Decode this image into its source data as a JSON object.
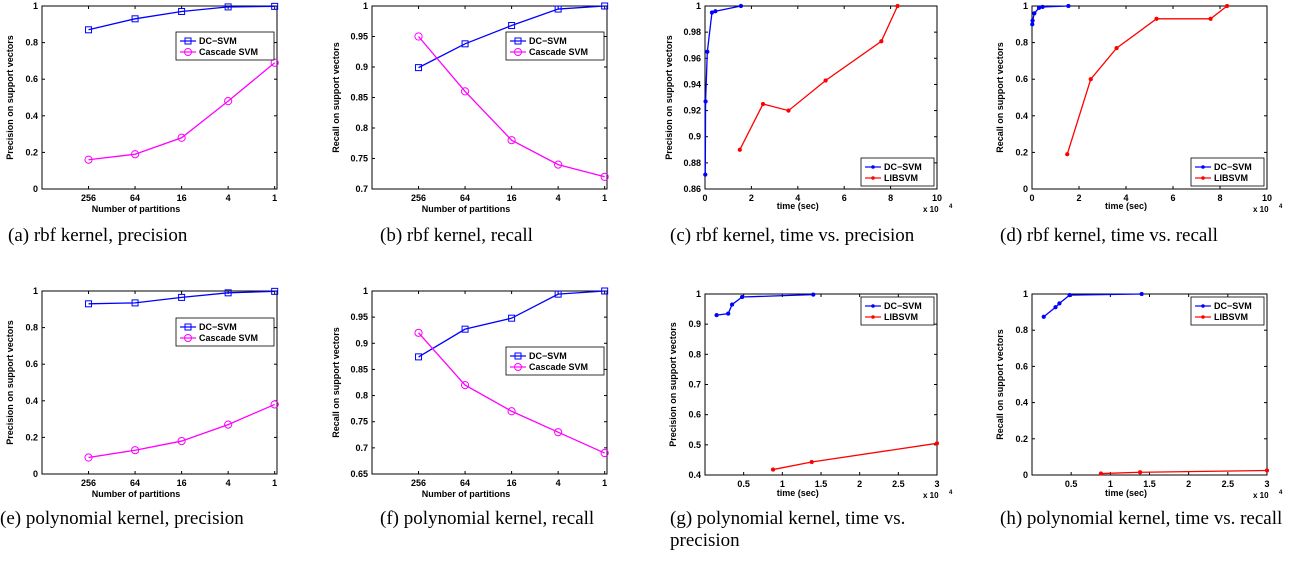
{
  "chart_data": [
    {
      "type": "line",
      "caption": "(a) rbf kernel, precision",
      "xlabel": "Number of partitions",
      "ylabel": "Precision on support vectors",
      "x_categorical": true,
      "categories": [
        "256",
        "64",
        "16",
        "4",
        "1"
      ],
      "xlim": [
        0,
        5.05
      ],
      "ylim": [
        0,
        1
      ],
      "xticks": [
        1,
        2,
        3,
        4,
        5
      ],
      "xticklabels": [
        "256",
        "64",
        "16",
        "4",
        "1"
      ],
      "yticks": [
        0,
        0.2,
        0.4,
        0.6,
        0.8,
        1
      ],
      "yticklabels": [
        "0",
        "0.2",
        "0.4",
        "0.6",
        "0.8",
        "1"
      ],
      "grid": false,
      "legend_position": "upper-right",
      "series": [
        {
          "name": "DC−SVM",
          "color": "#0000ff",
          "marker": "square",
          "values": [
            0.87,
            0.93,
            0.97,
            0.995,
            0.998
          ]
        },
        {
          "name": "Cascade SVM",
          "color": "#ff00ff",
          "marker": "circle",
          "values": [
            0.16,
            0.19,
            0.28,
            0.48,
            0.69
          ]
        }
      ]
    },
    {
      "type": "line",
      "caption": "(b) rbf kernel, recall",
      "xlabel": "Number of partitions",
      "ylabel": "Recall on support vectors",
      "x_categorical": true,
      "categories": [
        "256",
        "64",
        "16",
        "4",
        "1"
      ],
      "xlim": [
        0,
        5.05
      ],
      "ylim": [
        0.7,
        1
      ],
      "xticks": [
        1,
        2,
        3,
        4,
        5
      ],
      "xticklabels": [
        "256",
        "64",
        "16",
        "4",
        "1"
      ],
      "yticks": [
        0.7,
        0.75,
        0.8,
        0.85,
        0.9,
        0.95,
        1
      ],
      "yticklabels": [
        "0.7",
        "0.75",
        "0.8",
        "0.85",
        "0.9",
        "0.95",
        "1"
      ],
      "grid": false,
      "legend_position": "upper-right",
      "series": [
        {
          "name": "DC−SVM",
          "color": "#0000ff",
          "marker": "square",
          "values": [
            0.899,
            0.938,
            0.968,
            0.995,
            1.0
          ]
        },
        {
          "name": "Cascade SVM",
          "color": "#ff00ff",
          "marker": "circle",
          "values": [
            0.95,
            0.86,
            0.78,
            0.74,
            0.72
          ]
        }
      ]
    },
    {
      "type": "line",
      "caption": "(c) rbf kernel, time vs. precision",
      "xlabel": "time (sec)",
      "ylabel": "Precision on support vectors",
      "x_exponent": "x 10",
      "x_categorical": false,
      "xlim": [
        0,
        100000
      ],
      "ylim": [
        0.86,
        1
      ],
      "xticks": [
        0,
        20000,
        40000,
        60000,
        80000,
        100000
      ],
      "xticklabels": [
        "0",
        "2",
        "4",
        "6",
        "8",
        "10"
      ],
      "yticks": [
        0.86,
        0.88,
        0.9,
        0.92,
        0.94,
        0.96,
        0.98,
        1
      ],
      "yticklabels": [
        "0.86",
        "0.88",
        "0.9",
        "0.92",
        "0.94",
        "0.96",
        "0.98",
        "1"
      ],
      "grid": false,
      "legend_position": "lower-right",
      "series": [
        {
          "name": "DC−SVM",
          "color": "#0000ff",
          "marker": "dot",
          "x": [
            120,
            250,
            1000,
            3000,
            4500,
            15500
          ],
          "y": [
            0.871,
            0.927,
            0.965,
            0.995,
            0.996,
            1.0
          ]
        },
        {
          "name": "LIBSVM",
          "color": "#ff0000",
          "marker": "dot",
          "x": [
            15000,
            25000,
            36000,
            52000,
            76000,
            83000
          ],
          "y": [
            0.89,
            0.925,
            0.92,
            0.943,
            0.973,
            1.0
          ]
        }
      ]
    },
    {
      "type": "line",
      "caption": "(d) rbf kernel, time vs. recall",
      "xlabel": "time (sec)",
      "ylabel": "Recall on support vectors",
      "x_exponent": "x 10",
      "x_categorical": false,
      "xlim": [
        0,
        100000
      ],
      "ylim": [
        0,
        1
      ],
      "xticks": [
        0,
        20000,
        40000,
        60000,
        80000,
        100000
      ],
      "xticklabels": [
        "0",
        "2",
        "4",
        "6",
        "8",
        "10"
      ],
      "yticks": [
        0,
        0.2,
        0.4,
        0.6,
        0.8,
        1
      ],
      "yticklabels": [
        "0",
        "0.2",
        "0.4",
        "0.6",
        "0.8",
        "1"
      ],
      "grid": false,
      "legend_position": "lower-right",
      "series": [
        {
          "name": "DC−SVM",
          "color": "#0000ff",
          "marker": "dot",
          "x": [
            120,
            250,
            1000,
            3000,
            4500,
            15500
          ],
          "y": [
            0.9,
            0.92,
            0.96,
            0.99,
            0.995,
            1.0
          ]
        },
        {
          "name": "LIBSVM",
          "color": "#ff0000",
          "marker": "dot",
          "x": [
            15000,
            25000,
            36000,
            53000,
            76000,
            83000
          ],
          "y": [
            0.19,
            0.6,
            0.77,
            0.93,
            0.93,
            1.0
          ]
        }
      ]
    },
    {
      "type": "line",
      "caption": "(e) polynomial kernel, precision",
      "xlabel": "Number of partitions",
      "ylabel": "Precision on support vectors",
      "x_categorical": true,
      "categories": [
        "256",
        "64",
        "16",
        "4",
        "1"
      ],
      "xlim": [
        0,
        5.05
      ],
      "ylim": [
        0,
        1
      ],
      "xticks": [
        1,
        2,
        3,
        4,
        5
      ],
      "xticklabels": [
        "256",
        "64",
        "16",
        "4",
        "1"
      ],
      "yticks": [
        0,
        0.2,
        0.4,
        0.6,
        0.8,
        1
      ],
      "yticklabels": [
        "0",
        "0.2",
        "0.4",
        "0.6",
        "0.8",
        "1"
      ],
      "grid": false,
      "legend_position": "upper-right",
      "series": [
        {
          "name": "DC−SVM",
          "color": "#0000ff",
          "marker": "square",
          "values": [
            0.93,
            0.935,
            0.965,
            0.99,
            0.998
          ]
        },
        {
          "name": "Cascade SVM",
          "color": "#ff00ff",
          "marker": "circle",
          "values": [
            0.09,
            0.13,
            0.18,
            0.27,
            0.38
          ]
        }
      ]
    },
    {
      "type": "line",
      "caption": "(f) polynomial kernel, recall",
      "xlabel": "Number of partitions",
      "ylabel": "Recall on support vectors",
      "x_categorical": true,
      "categories": [
        "256",
        "64",
        "16",
        "4",
        "1"
      ],
      "xlim": [
        0,
        5.05
      ],
      "ylim": [
        0.65,
        1
      ],
      "xticks": [
        1,
        2,
        3,
        4,
        5
      ],
      "xticklabels": [
        "256",
        "64",
        "16",
        "4",
        "1"
      ],
      "yticks": [
        0.65,
        0.7,
        0.75,
        0.8,
        0.85,
        0.9,
        0.95,
        1
      ],
      "yticklabels": [
        "0.65",
        "0.7",
        "0.75",
        "0.8",
        "0.85",
        "0.9",
        "0.95",
        "1"
      ],
      "grid": false,
      "legend_position": "upper-right",
      "series": [
        {
          "name": "DC−SVM",
          "color": "#0000ff",
          "marker": "square",
          "values": [
            0.874,
            0.927,
            0.948,
            0.994,
            1.0
          ]
        },
        {
          "name": "Cascade SVM",
          "color": "#ff00ff",
          "marker": "circle",
          "values": [
            0.92,
            0.82,
            0.77,
            0.73,
            0.69
          ]
        }
      ]
    },
    {
      "type": "line",
      "caption": "(g) polynomial kernel, time vs. precision",
      "xlabel": "time (sec)",
      "ylabel": "Precision on support vectors",
      "x_exponent": "x 10",
      "x_categorical": false,
      "xlim": [
        0,
        30000
      ],
      "ylim": [
        0.4,
        1
      ],
      "xticks": [
        5000,
        10000,
        15000,
        20000,
        25000,
        30000
      ],
      "xticklabels": [
        "0.5",
        "1",
        "1.5",
        "2",
        "2.5",
        "3"
      ],
      "yticks": [
        0.4,
        0.5,
        0.6,
        0.7,
        0.8,
        0.9,
        1
      ],
      "yticklabels": [
        "0.4",
        "0.5",
        "0.6",
        "0.7",
        "0.8",
        "0.9",
        "1"
      ],
      "grid": false,
      "legend_position": "upper-right",
      "series": [
        {
          "name": "DC−SVM",
          "color": "#0000ff",
          "marker": "dot",
          "x": [
            1500,
            3000,
            3500,
            4800,
            14000
          ],
          "y": [
            0.93,
            0.935,
            0.965,
            0.99,
            0.998
          ]
        },
        {
          "name": "LIBSVM",
          "color": "#ff0000",
          "marker": "dot",
          "x": [
            8800,
            13800,
            30000
          ],
          "y": [
            0.418,
            0.443,
            0.505
          ]
        }
      ]
    },
    {
      "type": "line",
      "caption": "(h) polynomial kernel, time vs. recall",
      "xlabel": "time (sec)",
      "ylabel": "Recall on support vectors",
      "x_exponent": "x 10",
      "x_categorical": false,
      "xlim": [
        0,
        30000
      ],
      "ylim": [
        0,
        1
      ],
      "xticks": [
        5000,
        10000,
        15000,
        20000,
        25000,
        30000
      ],
      "xticklabels": [
        "0.5",
        "1",
        "1.5",
        "2",
        "2.5",
        "3"
      ],
      "yticks": [
        0,
        0.2,
        0.4,
        0.6,
        0.8,
        1
      ],
      "yticklabels": [
        "0",
        "0.2",
        "0.4",
        "0.6",
        "0.8",
        "1"
      ],
      "grid": false,
      "legend_position": "upper-right",
      "series": [
        {
          "name": "DC−SVM",
          "color": "#0000ff",
          "marker": "dot",
          "x": [
            1500,
            3000,
            3500,
            4800,
            14000
          ],
          "y": [
            0.874,
            0.927,
            0.948,
            0.994,
            1.0
          ]
        },
        {
          "name": "LIBSVM",
          "color": "#ff0000",
          "marker": "dot",
          "x": [
            8800,
            13800,
            30000
          ],
          "y": [
            0.008,
            0.015,
            0.025
          ]
        }
      ]
    }
  ]
}
